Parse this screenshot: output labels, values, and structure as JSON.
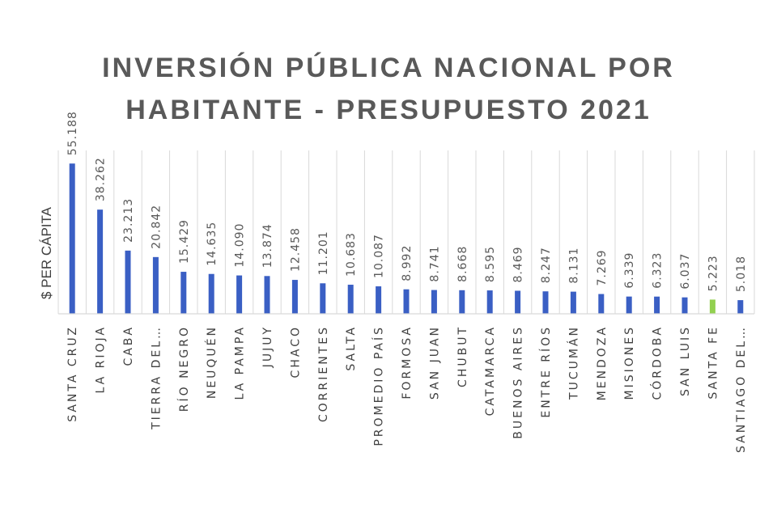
{
  "chart_data": {
    "type": "bar",
    "title_lines": [
      "INVERSIÓN PÚBLICA NACIONAL POR",
      "HABITANTE - PRESUPUESTO 2021"
    ],
    "xlabel": "",
    "ylabel": "$ PER CÁPITA",
    "ylim": [
      0,
      60
    ],
    "grid": "vertical category separators",
    "legend": "none",
    "categories": [
      "SANTA CRUZ",
      "LA RIOJA",
      "CABA",
      "TIERRA DEL…",
      "RÍO NEGRO",
      "NEUQUÉN",
      "LA PAMPA",
      "JUJUY",
      "CHACO",
      "CORRIENTES",
      "SALTA",
      "PROMEDIO PAÍS",
      "FORMOSA",
      "SAN JUAN",
      "CHUBUT",
      "CATAMARCA",
      "BUENOS AIRES",
      "ENTRE RÍOS",
      "TUCUMÁN",
      "MENDOZA",
      "MISIONES",
      "CÓRDOBA",
      "SAN LUIS",
      "SANTA FE",
      "SANTIAGO DEL…"
    ],
    "values": [
      55188,
      38262,
      23213,
      20842,
      15429,
      14635,
      14090,
      13874,
      12458,
      11201,
      10683,
      10087,
      8992,
      8741,
      8668,
      8595,
      8469,
      8247,
      8131,
      7269,
      6339,
      6323,
      6037,
      5223,
      5018
    ],
    "value_labels": [
      "55.188",
      "38.262",
      "23.213",
      "20.842",
      "15.429",
      "14.635",
      "14.090",
      "13.874",
      "12.458",
      "11.201",
      "10.683",
      "10.087",
      "8.992",
      "8.741",
      "8.668",
      "8.595",
      "8.469",
      "8.247",
      "8.131",
      "7.269",
      "6.339",
      "6.323",
      "6.037",
      "5.223",
      "5.018"
    ],
    "highlight_category": "SANTA FE",
    "colors": {
      "bar": "#3a5fc4",
      "highlight": "#92d050"
    },
    "value_scale_max": 60000
  }
}
